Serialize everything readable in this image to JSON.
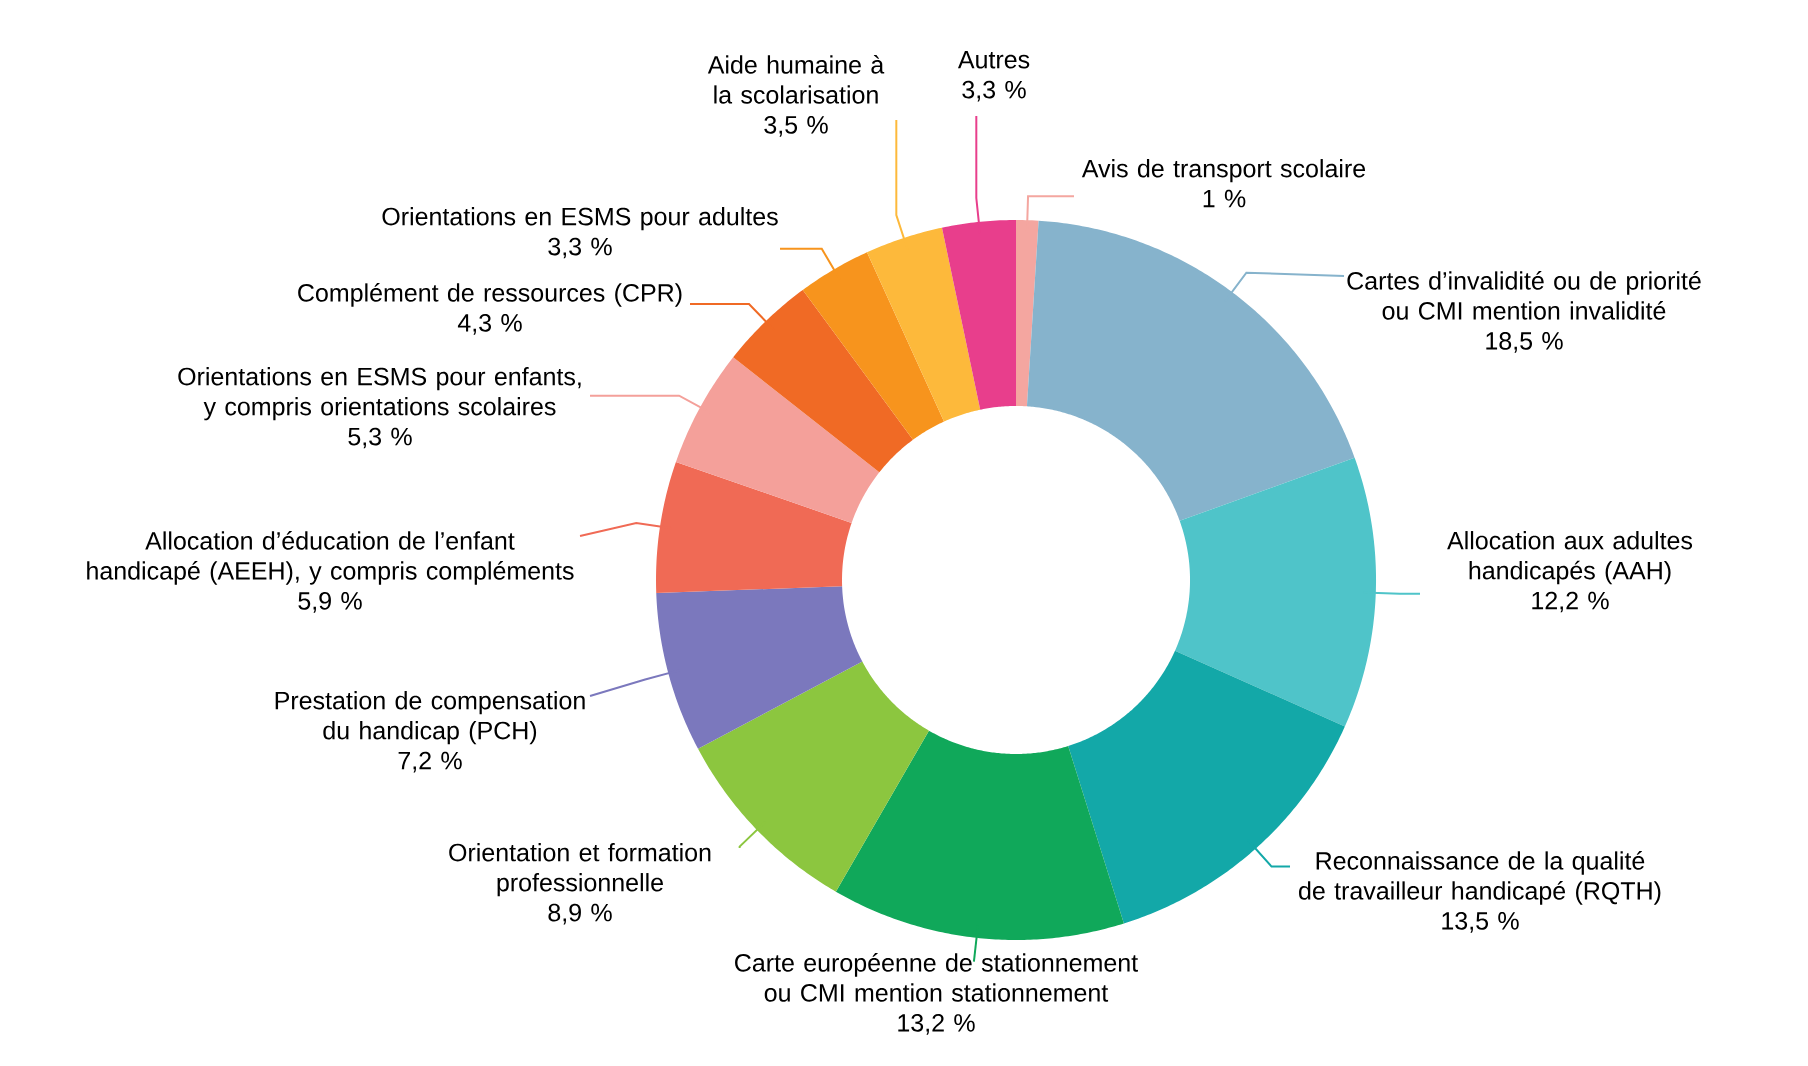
{
  "chart_data": {
    "type": "donut",
    "categories": [
      "Avis de transport scolaire",
      "Cartes d’invalidité ou de priorité ou CMI mention invalidité",
      "Allocation aux adultes handicapés (AAH)",
      "Reconnaissance de la qualité de travailleur handicapé (RQTH)",
      "Carte européenne de stationnement ou CMI mention stationnement",
      "Orientation et formation professionnelle",
      "Prestation de compensation du handicap (PCH)",
      "Allocation d’éducation de l’enfant handicapé (AEEH), y compris compléments",
      "Orientations en ESMS pour enfants, y compris orientations scolaires",
      "Complément de ressources (CPR)",
      "Orientations en ESMS pour adultes",
      "Aide humaine à la scolarisation",
      "Autres"
    ],
    "values": [
      1,
      18.5,
      12.2,
      13.5,
      13.2,
      8.9,
      7.2,
      5.9,
      5.3,
      4.3,
      3.3,
      3.5,
      3.3
    ],
    "value_labels": [
      "1 %",
      "18,5 %",
      "12,2 %",
      "13,5 %",
      "13,2 %",
      "8,9 %",
      "7,2 %",
      "5,9 %",
      "5,3 %",
      "4,3 %",
      "3,3 %",
      "3,5 %",
      "3,3 %"
    ],
    "colors": [
      "#f4a6a0",
      "#86b3cc",
      "#4fc4c9",
      "#13a8a8",
      "#10a85a",
      "#8cc63f",
      "#7b78bd",
      "#f06a55",
      "#f4a09a",
      "#f06a25",
      "#f7941d",
      "#fdb93b",
      "#e83e8c"
    ]
  }
}
